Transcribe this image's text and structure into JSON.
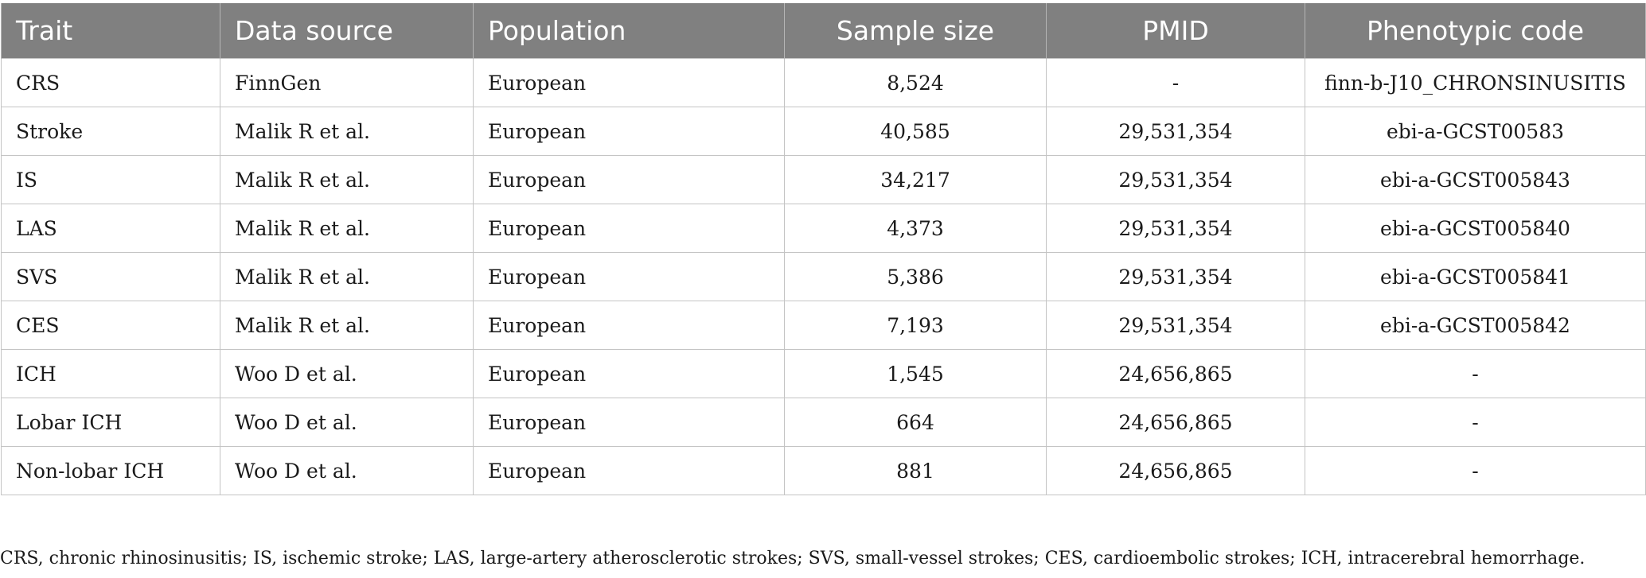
{
  "table": {
    "headers": [
      "Trait",
      "Data source",
      "Population",
      "Sample size",
      "PMID",
      "Phenotypic code"
    ],
    "rows": [
      [
        "CRS",
        "FinnGen",
        "European",
        "8,524",
        "-",
        "finn-b-J10_CHRONSINUSITIS"
      ],
      [
        "Stroke",
        "Malik R et al.",
        "European",
        "40,585",
        "29,531,354",
        "ebi-a-GCST00583"
      ],
      [
        "IS",
        "Malik R et al.",
        "European",
        "34,217",
        "29,531,354",
        "ebi-a-GCST005843"
      ],
      [
        "LAS",
        "Malik R et al.",
        "European",
        "4,373",
        "29,531,354",
        "ebi-a-GCST005840"
      ],
      [
        "SVS",
        "Malik R et al.",
        "European",
        "5,386",
        "29,531,354",
        "ebi-a-GCST005841"
      ],
      [
        "CES",
        "Malik R et al.",
        "European",
        "7,193",
        "29,531,354",
        "ebi-a-GCST005842"
      ],
      [
        "ICH",
        "Woo D et al.",
        "European",
        "1,545",
        "24,656,865",
        "-"
      ],
      [
        "Lobar ICH",
        "Woo D et al.",
        "European",
        "664",
        "24,656,865",
        "-"
      ],
      [
        "Non-lobar ICH",
        "Woo D et al.",
        "European",
        "881",
        "24,656,865",
        "-"
      ]
    ]
  },
  "footnote": "CRS, chronic rhinosinusitis; IS, ischemic stroke; LAS, large-artery atherosclerotic strokes; SVS, small-vessel strokes; CES, cardioembolic strokes; ICH, intracerebral hemorrhage."
}
